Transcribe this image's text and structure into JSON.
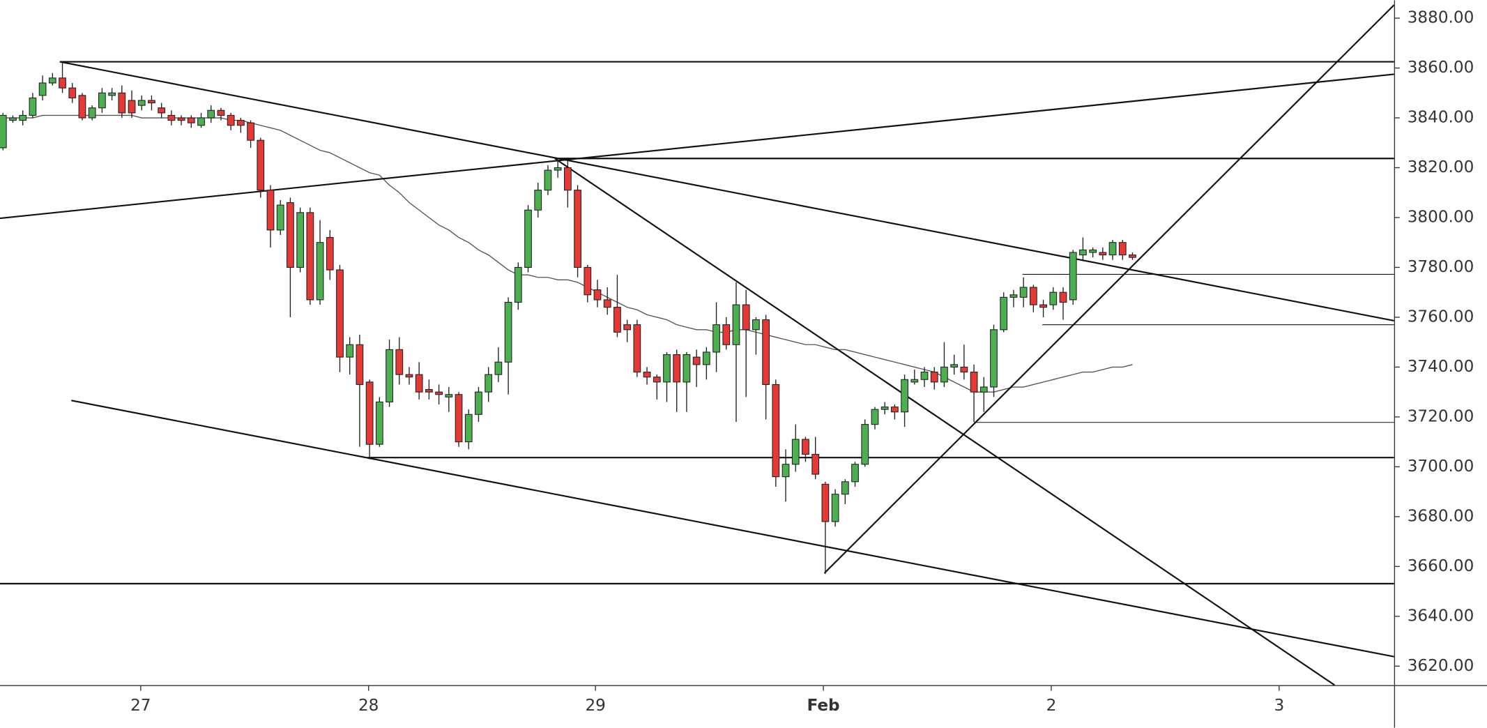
{
  "chart_data": {
    "type": "candlestick",
    "up_color": "#4caf50",
    "down_color": "#e53935",
    "x": [
      0,
      1,
      2,
      3,
      4,
      5,
      6,
      7,
      8,
      9,
      10,
      11,
      12,
      13,
      14,
      15,
      16,
      17,
      18,
      19,
      20,
      21,
      22,
      23,
      24,
      25,
      26,
      27,
      28,
      29,
      30,
      31,
      32,
      33,
      34,
      35,
      36,
      37,
      38,
      39,
      40,
      41,
      42,
      43,
      44,
      45,
      46,
      47,
      48,
      49,
      50,
      51,
      52,
      53,
      54,
      55,
      56,
      57,
      58,
      59,
      60,
      61,
      62,
      63,
      64,
      65,
      66,
      67,
      68,
      69,
      70,
      71,
      72,
      73,
      74,
      75,
      76,
      77,
      78,
      79,
      80,
      81,
      82,
      83,
      84,
      85,
      86,
      87,
      88,
      89,
      90,
      91,
      92,
      93,
      94,
      95,
      96,
      97,
      98,
      99,
      100,
      101,
      102,
      103,
      104,
      105,
      106,
      107,
      108,
      109,
      110,
      111,
      112,
      113,
      114
    ],
    "open": [
      3828,
      3839,
      3839,
      3841,
      3849,
      3854,
      3856,
      3852,
      3849,
      3840,
      3844,
      3849,
      3850,
      3847,
      3845,
      3847,
      3844,
      3841,
      3840,
      3840,
      3837,
      3840,
      3843,
      3841,
      3839,
      3838,
      3831,
      3811,
      3795,
      3806,
      3780,
      3802,
      3767,
      3792,
      3779,
      3744,
      3749,
      3734,
      3709,
      3726,
      3747,
      3737,
      3737,
      3731,
      3730,
      3728,
      3729,
      3710,
      3721,
      3730,
      3737,
      3742,
      3766,
      3780,
      3803,
      3811,
      3819,
      3820,
      3811,
      3780,
      3771,
      3767,
      3764,
      3757,
      3757,
      3738,
      3736,
      3734,
      3745,
      3734,
      3744,
      3741,
      3746,
      3757,
      3749,
      3765,
      3755,
      3759,
      3733,
      3696,
      3701,
      3711,
      3705,
      3693,
      3678,
      3689,
      3694,
      3701,
      3717,
      3723,
      3724,
      3722,
      3734,
      3735,
      3738,
      3734,
      3740,
      3740,
      3738,
      3730,
      3732,
      3755,
      3768,
      3768,
      3772,
      3765,
      3765,
      3770,
      3767,
      3785,
      3786,
      3786,
      3785,
      3790,
      3785
    ],
    "high": [
      3842,
      3841,
      3843,
      3850,
      3857,
      3858,
      3862,
      3854,
      3850,
      3845,
      3852,
      3852,
      3853,
      3851,
      3849,
      3849,
      3846,
      3843,
      3841,
      3841,
      3842,
      3845,
      3844,
      3842,
      3840,
      3839,
      3832,
      3813,
      3807,
      3808,
      3804,
      3804,
      3799,
      3795,
      3781,
      3752,
      3753,
      3735,
      3728,
      3751,
      3752,
      3740,
      3742,
      3735,
      3733,
      3732,
      3730,
      3723,
      3732,
      3740,
      3748,
      3768,
      3782,
      3805,
      3814,
      3821,
      3823,
      3823,
      3813,
      3781,
      3775,
      3772,
      3777,
      3759,
      3759,
      3740,
      3737,
      3746,
      3747,
      3746,
      3747,
      3748,
      3766,
      3760,
      3774,
      3771,
      3760,
      3761,
      3735,
      3707,
      3717,
      3712,
      3712,
      3694,
      3691,
      3695,
      3702,
      3719,
      3724,
      3726,
      3725,
      3737,
      3739,
      3740,
      3740,
      3750,
      3745,
      3749,
      3741,
      3736,
      3757,
      3770,
      3771,
      3776,
      3773,
      3767,
      3772,
      3772,
      3787,
      3792,
      3788,
      3788,
      3791,
      3791,
      3786
    ],
    "low": [
      3827,
      3838,
      3837,
      3840,
      3847,
      3853,
      3850,
      3846,
      3839,
      3839,
      3842,
      3847,
      3840,
      3840,
      3843,
      3843,
      3840,
      3837,
      3837,
      3836,
      3836,
      3838,
      3839,
      3835,
      3834,
      3828,
      3808,
      3788,
      3793,
      3760,
      3778,
      3765,
      3765,
      3775,
      3738,
      3737,
      3708,
      3703,
      3708,
      3724,
      3733,
      3733,
      3727,
      3727,
      3725,
      3722,
      3708,
      3707,
      3718,
      3726,
      3734,
      3729,
      3763,
      3778,
      3800,
      3809,
      3816,
      3804,
      3776,
      3766,
      3764,
      3761,
      3752,
      3750,
      3736,
      3733,
      3727,
      3726,
      3722,
      3722,
      3732,
      3735,
      3738,
      3747,
      3718,
      3728,
      3745,
      3719,
      3692,
      3686,
      3698,
      3702,
      3695,
      3657,
      3676,
      3685,
      3692,
      3700,
      3715,
      3721,
      3719,
      3716,
      3733,
      3732,
      3731,
      3732,
      3737,
      3735,
      3718,
      3722,
      3728,
      3754,
      3764,
      3764,
      3762,
      3760,
      3763,
      3759,
      3765,
      3783,
      3784,
      3783,
      3783,
      3783,
      3783
    ],
    "close": [
      3841,
      3840,
      3841,
      3848,
      3854,
      3856,
      3852,
      3848,
      3840,
      3844,
      3850,
      3850,
      3842,
      3842,
      3847,
      3846,
      3842,
      3839,
      3839,
      3838,
      3840,
      3843,
      3841,
      3837,
      3837,
      3831,
      3811,
      3795,
      3805,
      3780,
      3802,
      3767,
      3790,
      3779,
      3744,
      3749,
      3733,
      3709,
      3726,
      3747,
      3737,
      3736,
      3730,
      3730,
      3729,
      3729,
      3710,
      3721,
      3730,
      3737,
      3742,
      3766,
      3780,
      3803,
      3811,
      3819,
      3820,
      3811,
      3780,
      3769,
      3767,
      3764,
      3754,
      3755,
      3738,
      3736,
      3734,
      3745,
      3734,
      3745,
      3741,
      3746,
      3757,
      3749,
      3765,
      3755,
      3759,
      3733,
      3696,
      3701,
      3711,
      3705,
      3697,
      3678,
      3689,
      3694,
      3701,
      3717,
      3723,
      3724,
      3722,
      3735,
      3735,
      3738,
      3734,
      3740,
      3741,
      3738,
      3730,
      3732,
      3755,
      3768,
      3769,
      3772,
      3765,
      3764,
      3770,
      3766,
      3786,
      3787,
      3787,
      3785,
      3790,
      3785,
      3784
    ],
    "moving_average": {
      "color": "#555555",
      "values": [
        3840,
        3840,
        3840,
        3840,
        3841,
        3841,
        3841,
        3841,
        3841,
        3841,
        3841,
        3841,
        3841,
        3841,
        3840,
        3840,
        3840,
        3840,
        3840,
        3840,
        3840,
        3840,
        3840,
        3839,
        3839,
        3838,
        3837,
        3836,
        3835,
        3833,
        3831,
        3829,
        3827,
        3826,
        3824,
        3822,
        3820,
        3818,
        3817,
        3813,
        3810,
        3806,
        3803,
        3800,
        3797,
        3795,
        3792,
        3790,
        3787,
        3785,
        3782,
        3779,
        3777,
        3777,
        3776,
        3776,
        3775,
        3775,
        3774,
        3772,
        3770,
        3768,
        3766,
        3764,
        3763,
        3761,
        3760,
        3759,
        3757,
        3756,
        3755,
        3755,
        3754,
        3754,
        3755,
        3755,
        3754,
        3753,
        3752,
        3751,
        3750,
        3749,
        3749,
        3748,
        3747,
        3747,
        3746,
        3745,
        3744,
        3743,
        3742,
        3741,
        3740,
        3739,
        3738,
        3736,
        3734,
        3732,
        3730,
        3730,
        3730,
        3731,
        3732,
        3732,
        3733,
        3734,
        3735,
        3736,
        3737,
        3738,
        3738,
        3739,
        3740,
        3740,
        3741
      ]
    },
    "lines": [
      {
        "x": [
          5.74,
          140.4
        ],
        "y": [
          3862.5,
          3862.5
        ],
        "width": 1.6
      },
      {
        "x": [
          5.74,
          140.4
        ],
        "y": [
          3862.5,
          3758.6
        ],
        "width": 1.6
      },
      {
        "x": [
          -0.3,
          140.4
        ],
        "y": [
          3799.7,
          3857.5
        ],
        "width": 1.6
      },
      {
        "x": [
          55.7,
          140.4
        ],
        "y": [
          3823.7,
          3823.7
        ],
        "width": 1.6
      },
      {
        "x": [
          55.7,
          134.4
        ],
        "y": [
          3823.7,
          3612.4
        ],
        "width": 1.6
      },
      {
        "x": [
          6.9,
          140.4
        ],
        "y": [
          3726.6,
          3623.8
        ],
        "width": 1.6
      },
      {
        "x": [
          36.8,
          140.4
        ],
        "y": [
          3703.7,
          3703.7
        ],
        "width": 1.6
      },
      {
        "x": [
          -0.3,
          140.4
        ],
        "y": [
          3653.1,
          3653.1
        ],
        "width": 1.6
      },
      {
        "x": [
          82.9,
          140.4
        ],
        "y": [
          3657.3,
          3885.3
        ],
        "width": 1.6
      },
      {
        "x": [
          102.9,
          140.4
        ],
        "y": [
          3777.2,
          3777.2
        ],
        "width": 0.8
      },
      {
        "x": [
          104.9,
          140.4
        ],
        "y": [
          3757.0,
          3757.0
        ],
        "width": 0.8
      },
      {
        "x": [
          98.0,
          140.4
        ],
        "y": [
          3717.8,
          3717.8
        ],
        "width": 0.8
      }
    ],
    "xlim": [
      -0.3,
      140.4
    ],
    "xticks": [
      {
        "value": 13.9,
        "label": "27"
      },
      {
        "value": 36.9,
        "label": "28"
      },
      {
        "value": 59.8,
        "label": "29"
      },
      {
        "value": 82.8,
        "label": "Feb"
      },
      {
        "value": 105.8,
        "label": "2"
      },
      {
        "value": 128.8,
        "label": "3"
      }
    ],
    "ylim": [
      3612.4,
      3887.2
    ],
    "yticks": [
      {
        "value": 3620,
        "label": "3620.00"
      },
      {
        "value": 3640,
        "label": "3640.00"
      },
      {
        "value": 3660,
        "label": "3660.00"
      },
      {
        "value": 3680,
        "label": "3680.00"
      },
      {
        "value": 3700,
        "label": "3700.00"
      },
      {
        "value": 3720,
        "label": "3720.00"
      },
      {
        "value": 3740,
        "label": "3740.00"
      },
      {
        "value": 3760,
        "label": "3760.00"
      },
      {
        "value": 3780,
        "label": "3780.00"
      },
      {
        "value": 3800,
        "label": "3800.00"
      },
      {
        "value": 3820,
        "label": "3820.00"
      },
      {
        "value": 3840,
        "label": "3840.00"
      },
      {
        "value": 3860,
        "label": "3860.00"
      },
      {
        "value": 3880,
        "label": "3880.00"
      }
    ]
  }
}
